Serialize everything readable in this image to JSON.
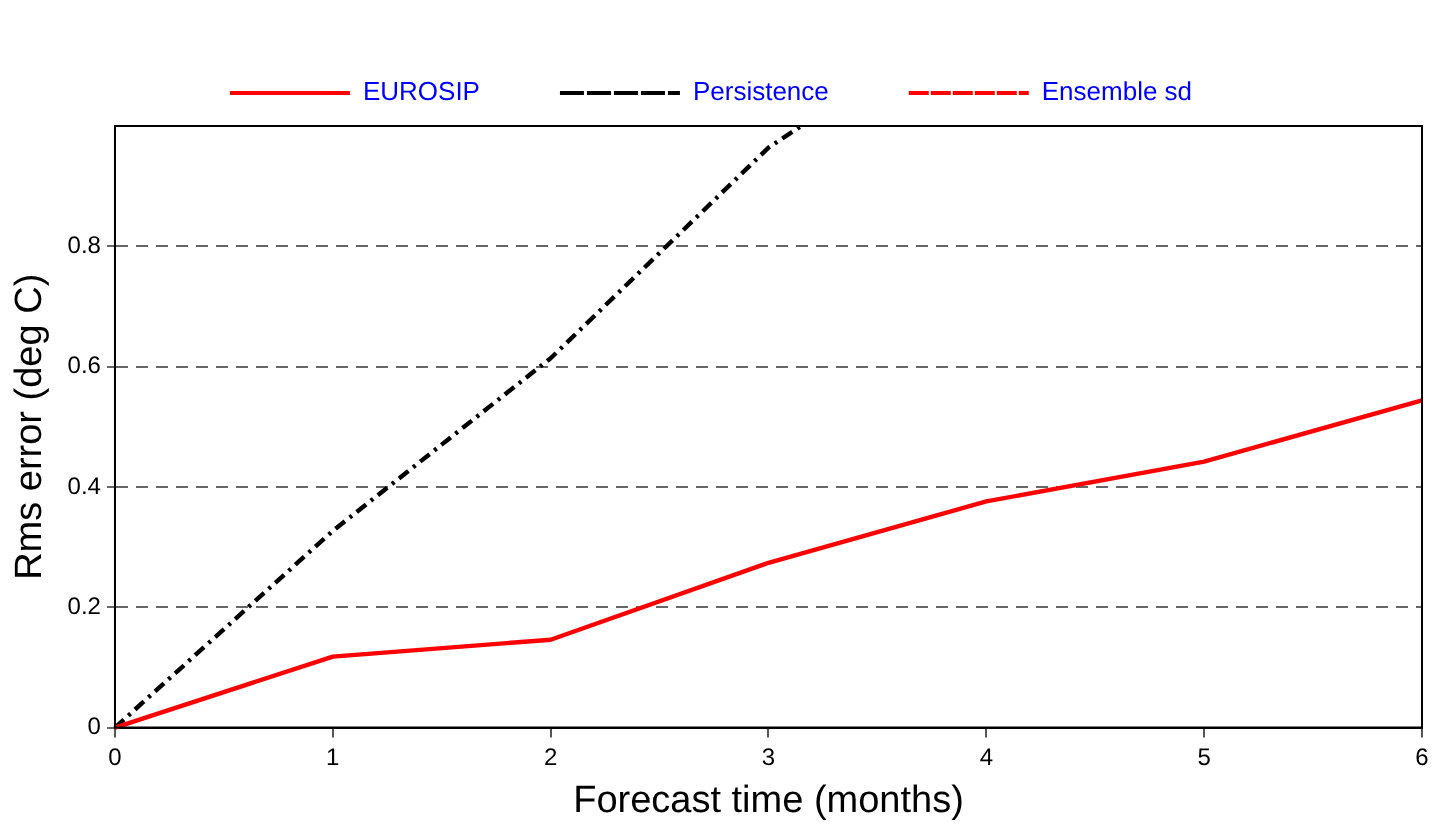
{
  "chart_data": {
    "type": "line",
    "xlabel": "Forecast time (months)",
    "ylabel": "Rms error (deg C)",
    "x": [
      0,
      1,
      2,
      3,
      4,
      5,
      6
    ],
    "series": [
      {
        "name": "EUROSIP",
        "color": "#ff0000",
        "line_style": "solid",
        "values": [
          0,
          0.118,
          0.146,
          0.274,
          0.376,
          0.442,
          0.544
        ]
      },
      {
        "name": "Persistence",
        "color": "#000000",
        "line_style": "dashdot",
        "x": [
          0,
          1,
          2,
          3,
          3.15
        ],
        "values": [
          0,
          0.327,
          0.614,
          0.964,
          1.0
        ]
      },
      {
        "name": "Ensemble sd",
        "color": "#ff0000",
        "line_style": "dashed",
        "values": [
          null,
          null,
          null,
          null,
          null,
          null,
          null
        ]
      }
    ],
    "xlim": [
      0,
      6
    ],
    "xticks": [
      0,
      1,
      2,
      3,
      4,
      5,
      6
    ],
    "ylim": [
      0,
      1
    ],
    "yticks": [
      0,
      0.2,
      0.4,
      0.6,
      0.8
    ],
    "grid": "y",
    "legend": "top",
    "marker": "none"
  }
}
